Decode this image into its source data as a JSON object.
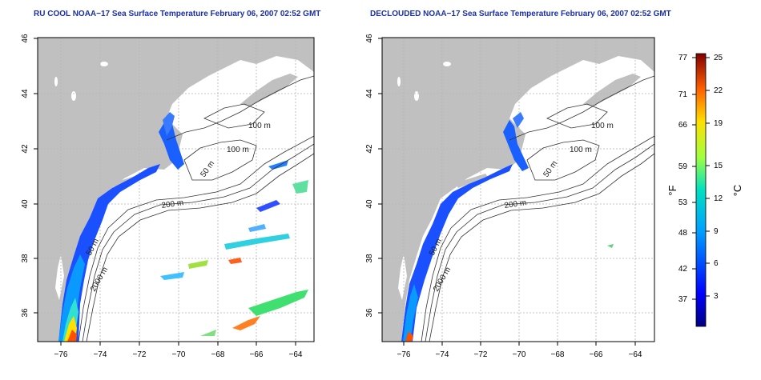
{
  "panels": [
    {
      "title": "RU COOL NOAA−17 Sea Surface Temperature February 06, 2007 02:52 GMT",
      "lon_ticks": [
        "−76",
        "−74",
        "−72",
        "−70",
        "−68",
        "−66",
        "−64"
      ],
      "lat_ticks": [
        "36",
        "38",
        "40",
        "42",
        "44",
        "46"
      ],
      "contour_labels": [
        "100 m",
        "100 m",
        "50 m",
        "200 m",
        "50 m",
        "2000 m"
      ]
    },
    {
      "title": "DECLOUDED NOAA−17 Sea Surface Temperature February 06, 2007 02:52 GMT",
      "lon_ticks": [
        "−76",
        "−74",
        "−72",
        "−70",
        "−68",
        "−66",
        "−64"
      ],
      "lat_ticks": [
        "36",
        "38",
        "40",
        "42",
        "44",
        "46"
      ],
      "contour_labels": [
        "100 m",
        "100 m",
        "50 m",
        "200 m",
        "50 m",
        "2000 m"
      ]
    }
  ],
  "colorbar": {
    "fahrenheit_label": "°F",
    "celsius_label": "°C",
    "fahrenheit_ticks": [
      "77",
      "71",
      "66",
      "59",
      "53",
      "48",
      "42",
      "37"
    ],
    "celsius_ticks": [
      "25",
      "22",
      "19",
      "15",
      "12",
      "9",
      "6",
      "3"
    ]
  },
  "colors": {
    "land": "#c0c0c0",
    "ocean": "#ffffff",
    "contour": "#333333",
    "grid": "#b4b4b4",
    "title": "#1a2fa8"
  }
}
